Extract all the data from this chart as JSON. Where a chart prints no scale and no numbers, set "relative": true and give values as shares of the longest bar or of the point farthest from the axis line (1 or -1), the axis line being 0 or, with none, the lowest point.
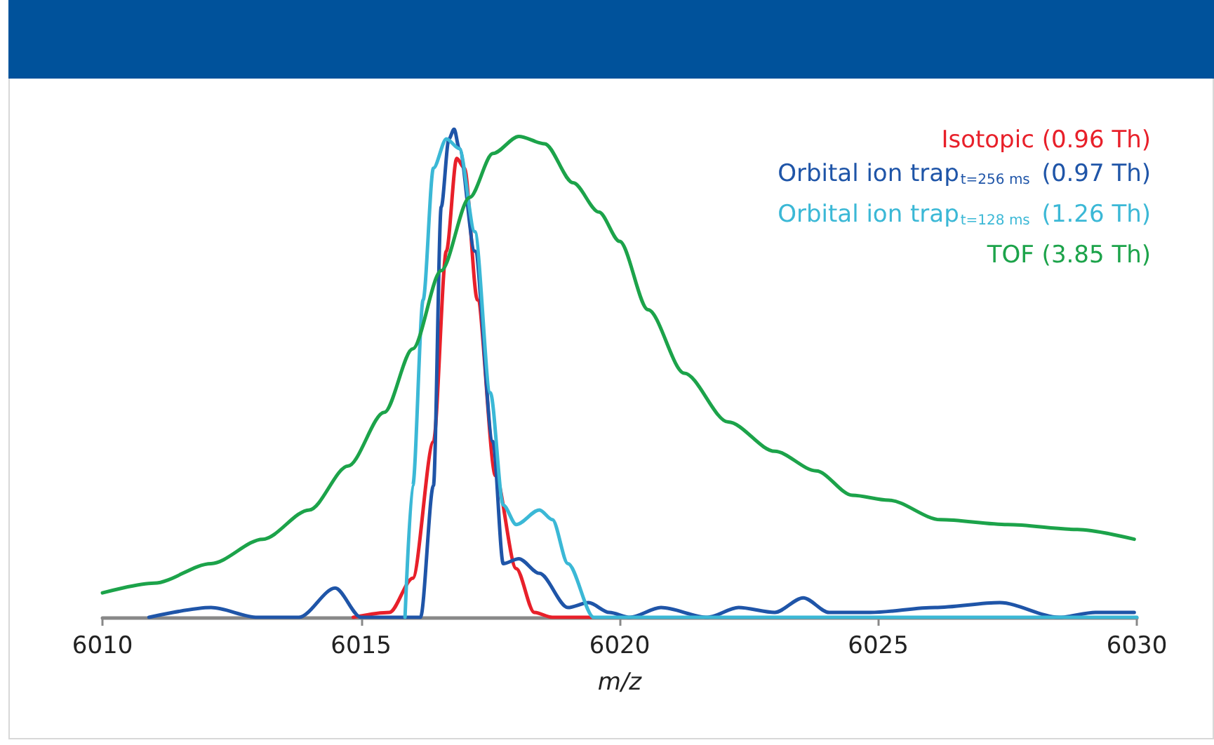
{
  "chart_data": {
    "type": "line",
    "xlabel": "m/z",
    "relative": true,
    "xlim": [
      6010,
      6030
    ],
    "xticks": [
      6010,
      6015,
      6020,
      6025,
      6030
    ],
    "legend": "top right",
    "grid": false,
    "marker": "none",
    "line_style": "solid",
    "series": [
      {
        "name": "Isotopic (0.96 Th)",
        "color": "#e8202a",
        "x": [
          6014.85,
          6015.55,
          6016.0,
          6016.4,
          6016.65,
          6016.85,
          6017.0,
          6017.25,
          6017.6,
          6018.0,
          6018.35,
          6018.7,
          6019.45
        ],
        "values": [
          0,
          0.01,
          0.08,
          0.36,
          0.75,
          0.94,
          0.92,
          0.65,
          0.29,
          0.1,
          0.01,
          0,
          0
        ]
      },
      {
        "name": "Orbital ion trap$_{t=256 ms}$ (0.97 Th)",
        "color": "#1f55a8",
        "x": [
          6010.9,
          6012.1,
          6013.0,
          6013.8,
          6014.5,
          6015.0,
          6016.15,
          6016.4,
          6016.55,
          6016.7,
          6016.8,
          6016.9,
          6017.2,
          6017.55,
          6017.75,
          6018.05,
          6018.45,
          6019.0,
          6019.4,
          6019.8,
          6020.2,
          6020.8,
          6021.7,
          6022.3,
          6023.0,
          6023.55,
          6024.05,
          6024.85,
          6026.1,
          6027.35,
          6028.5,
          6029.2,
          6029.95
        ],
        "values": [
          0,
          0.02,
          0,
          0,
          0.06,
          0,
          0,
          0.27,
          0.84,
          0.98,
          1,
          0.96,
          0.75,
          0.36,
          0.11,
          0.12,
          0.09,
          0.02,
          0.03,
          0.01,
          0,
          0.02,
          0,
          0.02,
          0.01,
          0.04,
          0.01,
          0.01,
          0.02,
          0.03,
          0,
          0.01,
          0.01
        ]
      },
      {
        "name": "Orbital ion trap$_{t=128 ms}$ (1.26 Th)",
        "color": "#3bb8d6",
        "x": [
          6015.85,
          6016.0,
          6016.2,
          6016.4,
          6016.65,
          6016.9,
          6017.2,
          6017.5,
          6017.75,
          6018.0,
          6018.45,
          6018.7,
          6019.0,
          6019.5,
          6025.0,
          6030.0
        ],
        "values": [
          0,
          0.27,
          0.65,
          0.92,
          0.98,
          0.96,
          0.79,
          0.46,
          0.23,
          0.19,
          0.22,
          0.2,
          0.11,
          0,
          0,
          0
        ]
      },
      {
        "name": "TOF (3.85 Th)",
        "color": "#1ca34a",
        "x": [
          6010.0,
          6011.0,
          6012.1,
          6013.1,
          6014.0,
          6014.75,
          6015.45,
          6016.0,
          6016.55,
          6017.1,
          6017.55,
          6018.05,
          6018.55,
          6019.1,
          6019.6,
          6020.0,
          6020.55,
          6021.25,
          6022.1,
          6023.0,
          6023.8,
          6024.5,
          6025.2,
          6026.2,
          6027.5,
          6028.85,
          6029.95
        ],
        "values": [
          0.05,
          0.07,
          0.11,
          0.16,
          0.22,
          0.31,
          0.42,
          0.55,
          0.71,
          0.86,
          0.95,
          0.985,
          0.97,
          0.89,
          0.83,
          0.77,
          0.63,
          0.5,
          0.4,
          0.34,
          0.3,
          0.25,
          0.24,
          0.2,
          0.19,
          0.18,
          0.16
        ]
      }
    ]
  }
}
